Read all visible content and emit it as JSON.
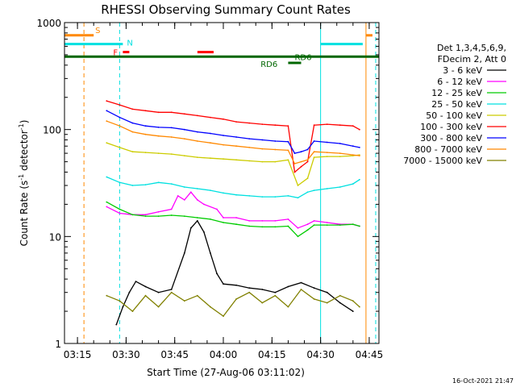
{
  "chart_data": {
    "type": "line",
    "title": "RHESSI Observing Summary Count Rates",
    "xlabel": "Start Time (27-Aug-06 03:11:02)",
    "ylabel_main": "Count Rate (s",
    "ylabel_sup1": "-1",
    "ylabel_mid": " detector",
    "ylabel_sup2": "-1",
    "ylabel_end": ")",
    "yscale": "log",
    "ylim": [
      1,
      1000
    ],
    "xlim": [
      "03:11",
      "04:48"
    ],
    "x_ticks": [
      "03:15",
      "03:30",
      "03:45",
      "04:00",
      "04:15",
      "04:30",
      "04:45"
    ],
    "y_ticks": [
      "1",
      "10",
      "100",
      "1000"
    ],
    "grid": false,
    "timestamp": "16-Oct-2021 21:47",
    "legend": {
      "position": "right",
      "header1": "Det 1,3,4,5,6,9,",
      "header2": "FDecim 2, Att 0"
    },
    "series": [
      {
        "name": "3 - 6 keV",
        "color": "#000000",
        "x": [
          "03:27",
          "03:29",
          "03:31",
          "03:33",
          "03:36",
          "03:40",
          "03:44",
          "03:48",
          "03:50",
          "03:52",
          "03:54",
          "03:56",
          "03:58",
          "04:00",
          "04:04",
          "04:08",
          "04:12",
          "04:16",
          "04:20",
          "04:24",
          "04:28",
          "04:32",
          "04:36",
          "04:40"
        ],
        "values": [
          1.5,
          2.2,
          3.0,
          3.8,
          3.4,
          3.0,
          3.2,
          7.0,
          12.0,
          14.0,
          11.0,
          7.0,
          4.5,
          3.6,
          3.5,
          3.3,
          3.2,
          3.0,
          3.4,
          3.7,
          3.3,
          3.0,
          2.4,
          2.0
        ]
      },
      {
        "name": "6 - 12 keV",
        "color": "#ff00ff",
        "x": [
          "03:24",
          "03:28",
          "03:32",
          "03:36",
          "03:40",
          "03:44",
          "03:46",
          "03:48",
          "03:50",
          "03:52",
          "03:54",
          "03:58",
          "04:00",
          "04:04",
          "04:08",
          "04:12",
          "04:16",
          "04:20",
          "04:23",
          "04:26",
          "04:28",
          "04:32",
          "04:36",
          "04:40",
          "04:42"
        ],
        "values": [
          19,
          16.5,
          16,
          16,
          17,
          18,
          24,
          22,
          26,
          22,
          20,
          18,
          15,
          15,
          14,
          14,
          14,
          14.5,
          12,
          13,
          14,
          13.5,
          13,
          13,
          12.5
        ]
      },
      {
        "name": "12 - 25 keV",
        "color": "#00cc00",
        "x": [
          "03:24",
          "03:28",
          "03:32",
          "03:36",
          "03:40",
          "03:44",
          "03:48",
          "03:52",
          "03:56",
          "04:00",
          "04:04",
          "04:08",
          "04:12",
          "04:16",
          "04:20",
          "04:23",
          "04:26",
          "04:28",
          "04:32",
          "04:36",
          "04:40",
          "04:42"
        ],
        "values": [
          21,
          18,
          16,
          15.5,
          15.5,
          15.8,
          15.5,
          15,
          14.5,
          13.5,
          13,
          12.5,
          12.3,
          12.3,
          12.5,
          10,
          11.5,
          12.8,
          12.8,
          12.8,
          13,
          12.5
        ]
      },
      {
        "name": "25 - 50 keV",
        "color": "#00e0e0",
        "x": [
          "03:24",
          "03:28",
          "03:32",
          "03:36",
          "03:40",
          "03:44",
          "03:48",
          "03:52",
          "03:56",
          "04:00",
          "04:04",
          "04:08",
          "04:12",
          "04:16",
          "04:20",
          "04:23",
          "04:26",
          "04:28",
          "04:32",
          "04:36",
          "04:40",
          "04:42"
        ],
        "values": [
          36,
          32,
          30,
          30.5,
          32,
          31,
          29,
          28,
          27,
          25.5,
          24.5,
          24,
          23.5,
          23.5,
          24,
          23,
          26,
          27,
          28,
          29,
          31,
          34
        ]
      },
      {
        "name": "50 - 100 keV",
        "color": "#cccc00",
        "x": [
          "03:24",
          "03:28",
          "03:32",
          "03:36",
          "03:40",
          "03:44",
          "03:48",
          "03:52",
          "03:56",
          "04:00",
          "04:04",
          "04:08",
          "04:12",
          "04:16",
          "04:20",
          "04:23",
          "04:26",
          "04:28",
          "04:32",
          "04:36",
          "04:40",
          "04:42"
        ],
        "values": [
          75,
          68,
          62,
          61,
          60,
          59,
          57,
          55,
          54,
          53,
          52,
          51,
          50,
          50,
          52,
          30,
          35,
          55,
          56,
          56,
          57,
          58
        ]
      },
      {
        "name": "100 - 300 keV",
        "color": "#ff0000",
        "x": [
          "03:24",
          "03:28",
          "03:32",
          "03:36",
          "03:40",
          "03:44",
          "03:48",
          "03:52",
          "03:56",
          "04:00",
          "04:04",
          "04:08",
          "04:12",
          "04:16",
          "04:20",
          "04:22",
          "04:24",
          "04:26",
          "04:28",
          "04:32",
          "04:36",
          "04:40",
          "04:42"
        ],
        "values": [
          185,
          170,
          155,
          150,
          145,
          145,
          140,
          135,
          130,
          125,
          118,
          115,
          112,
          110,
          108,
          40,
          45,
          50,
          110,
          112,
          110,
          108,
          100
        ]
      },
      {
        "name": "300 - 800 keV",
        "color": "#0000ff",
        "x": [
          "03:24",
          "03:28",
          "03:32",
          "03:36",
          "03:40",
          "03:44",
          "03:48",
          "03:52",
          "03:56",
          "04:00",
          "04:04",
          "04:08",
          "04:12",
          "04:16",
          "04:20",
          "04:22",
          "04:24",
          "04:26",
          "04:28",
          "04:32",
          "04:36",
          "04:40",
          "04:42"
        ],
        "values": [
          150,
          130,
          115,
          108,
          105,
          104,
          100,
          95,
          92,
          88,
          85,
          82,
          80,
          78,
          77,
          60,
          62,
          65,
          78,
          76,
          74,
          70,
          68
        ]
      },
      {
        "name": "800 - 7000 keV",
        "color": "#ff8800",
        "x": [
          "03:24",
          "03:28",
          "03:32",
          "03:36",
          "03:40",
          "03:44",
          "03:48",
          "03:52",
          "03:56",
          "04:00",
          "04:04",
          "04:08",
          "04:12",
          "04:16",
          "04:20",
          "04:22",
          "04:24",
          "04:26",
          "04:28",
          "04:32",
          "04:36",
          "04:40",
          "04:42"
        ],
        "values": [
          120,
          108,
          95,
          90,
          87,
          85,
          82,
          78,
          75,
          72,
          70,
          68,
          66,
          65,
          64,
          48,
          50,
          52,
          62,
          61,
          60,
          58,
          57
        ]
      },
      {
        "name": "7000 - 15000 keV",
        "color": "#808000",
        "x": [
          "03:24",
          "03:28",
          "03:32",
          "03:36",
          "03:40",
          "03:44",
          "03:48",
          "03:52",
          "03:56",
          "04:00",
          "04:04",
          "04:08",
          "04:12",
          "04:16",
          "04:20",
          "04:24",
          "04:28",
          "04:32",
          "04:36",
          "04:40",
          "04:42"
        ],
        "values": [
          2.8,
          2.5,
          2.0,
          2.8,
          2.2,
          3.0,
          2.5,
          2.8,
          2.2,
          1.8,
          2.6,
          3.0,
          2.4,
          2.8,
          2.2,
          3.2,
          2.6,
          2.4,
          2.8,
          2.5,
          2.2
        ]
      }
    ],
    "annotations": {
      "labels": [
        {
          "text": "S",
          "color": "#ff8800"
        },
        {
          "text": "N",
          "color": "#00e0e0"
        },
        {
          "text": "F",
          "color": "#ff0000"
        },
        {
          "text": "RD6",
          "color": "#006600"
        },
        {
          "text": "RD6",
          "color": "#006600"
        }
      ],
      "level_bars": [
        {
          "label": "S",
          "color": "#ff8800",
          "y": 760,
          "segments": [
            [
              "03:11",
              "03:20"
            ],
            [
              "04:44",
              "04:46"
            ]
          ]
        },
        {
          "label": "N",
          "color": "#00e0e0",
          "y": 630,
          "segments": [
            [
              "03:11",
              "03:29"
            ],
            [
              "04:30",
              "04:43"
            ]
          ]
        },
        {
          "label": "F",
          "color": "#ff0000",
          "y": 530,
          "segments": [
            [
              "03:29",
              "03:31"
            ],
            [
              "03:52",
              "03:57"
            ]
          ]
        },
        {
          "label": "RD6",
          "color": "#006600",
          "y": 480,
          "segments": [
            [
              "03:11",
              "04:48"
            ]
          ]
        },
        {
          "label": "RD6",
          "color": "#006600",
          "y": 420,
          "segments": [
            [
              "04:20",
              "04:24"
            ]
          ]
        }
      ],
      "vlines": [
        {
          "x": "03:17",
          "color": "#ff8800",
          "dashed": true
        },
        {
          "x": "03:28",
          "color": "#00e0e0",
          "dashed": true
        },
        {
          "x": "04:30",
          "color": "#00e0e0",
          "dashed": false
        },
        {
          "x": "04:44",
          "color": "#ff8800",
          "dashed": false
        },
        {
          "x": "04:47",
          "color": "#00e0e0",
          "dashed": true
        }
      ]
    }
  }
}
